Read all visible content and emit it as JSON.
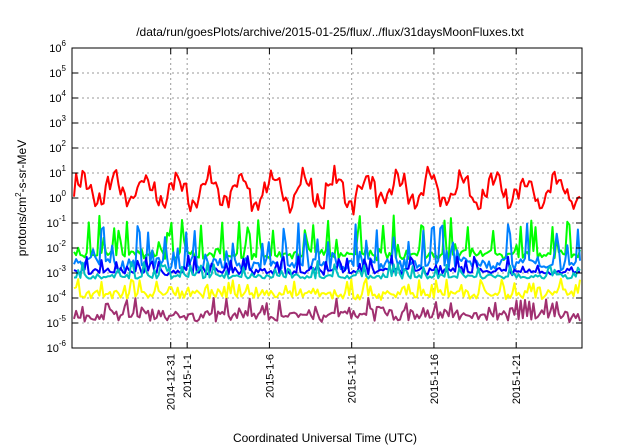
{
  "chart_data": {
    "type": "line",
    "title": "/data/run/goesPlots/archive/2015-01-25/flux/../flux/31daysMoonFluxes.txt",
    "xlabel": "Coordinated Universal Time (UTC)",
    "ylabel": "protons/cm²-s-sr-MeV",
    "ylabel_parts": {
      "pre": "protons/cm",
      "sup": "2",
      "post": "-s-sr-MeV"
    },
    "yscale": "log",
    "ylim": [
      1e-06,
      1000000.0
    ],
    "yticks": [
      {
        "base": "10",
        "exp": "-6",
        "value": 1e-06
      },
      {
        "base": "10",
        "exp": "-5",
        "value": 1e-05
      },
      {
        "base": "10",
        "exp": "-4",
        "value": 0.0001
      },
      {
        "base": "10",
        "exp": "-3",
        "value": 0.001
      },
      {
        "base": "10",
        "exp": "-2",
        "value": 0.01
      },
      {
        "base": "10",
        "exp": "-1",
        "value": 0.1
      },
      {
        "base": "10",
        "exp": "0",
        "value": 1
      },
      {
        "base": "10",
        "exp": "1",
        "value": 10
      },
      {
        "base": "10",
        "exp": "2",
        "value": 100
      },
      {
        "base": "10",
        "exp": "3",
        "value": 1000
      },
      {
        "base": "10",
        "exp": "4",
        "value": 10000
      },
      {
        "base": "10",
        "exp": "5",
        "value": 100000
      },
      {
        "base": "10",
        "exp": "6",
        "value": 1000000
      }
    ],
    "xlim": [
      "2014-12-25",
      "2015-01-25"
    ],
    "xticks": [
      {
        "label": "2014-12-31",
        "date": "2014-12-31"
      },
      {
        "label": "2015-1-1",
        "date": "2015-01-01"
      },
      {
        "label": "2015-1-6",
        "date": "2015-01-06"
      },
      {
        "label": "2015-1-11",
        "date": "2015-01-11"
      },
      {
        "label": "2015-1-16",
        "date": "2015-01-16"
      },
      {
        "label": "2015-1-21",
        "date": "2015-01-21"
      }
    ],
    "grid": true,
    "series": [
      {
        "color": "#ff0000",
        "typical": 2.0,
        "range": [
          0.15,
          40
        ]
      },
      {
        "color": "#00ff00",
        "typical": 0.008,
        "range": [
          0.003,
          0.2
        ]
      },
      {
        "color": "#0080ff",
        "typical": 0.004,
        "range": [
          0.001,
          0.1
        ]
      },
      {
        "color": "#0000ff",
        "typical": 0.0015,
        "range": [
          0.0008,
          0.005
        ]
      },
      {
        "color": "#00c0c0",
        "typical": 0.0008,
        "range": [
          0.0006,
          0.003
        ]
      },
      {
        "color": "#ffff00",
        "typical": 0.0002,
        "range": [
          8e-05,
          0.0006
        ]
      },
      {
        "color": "#a03070",
        "typical": 3e-05,
        "range": [
          1e-05,
          0.0001
        ]
      }
    ]
  }
}
